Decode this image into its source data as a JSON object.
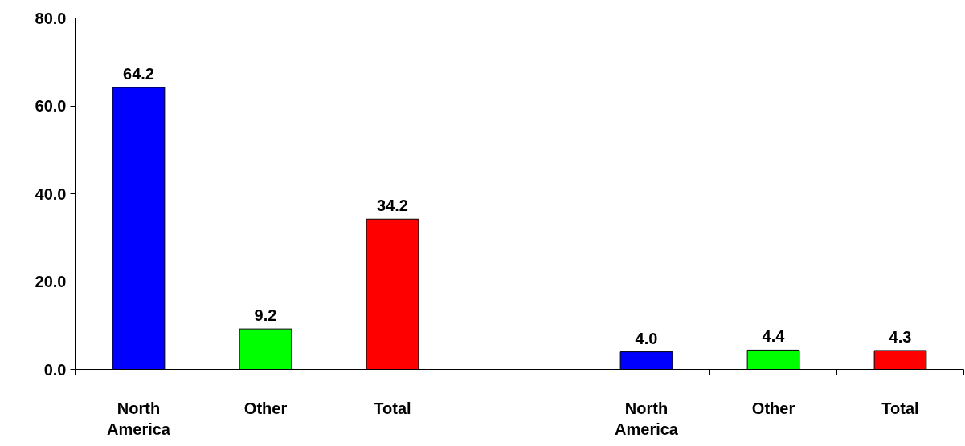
{
  "chart_data": {
    "type": "bar",
    "categories": [
      "North America",
      "Other",
      "Total",
      null,
      "North America",
      "Other",
      "Total"
    ],
    "values": [
      64.2,
      9.2,
      34.2,
      null,
      4.0,
      4.4,
      4.3
    ],
    "colors": [
      "#0000ff",
      "#00ff00",
      "#ff0000",
      null,
      "#0000ff",
      "#00ff00",
      "#ff0000"
    ],
    "ylim": [
      0,
      80
    ],
    "yticks": [
      {
        "value": 0,
        "label": "0.0"
      },
      {
        "value": 20,
        "label": "20.0"
      },
      {
        "value": 40,
        "label": "40.0"
      },
      {
        "value": 60,
        "label": "60.0"
      },
      {
        "value": 80,
        "label": "80.0"
      }
    ],
    "value_labels": [
      "64.2",
      "9.2",
      "34.2",
      null,
      "4.0",
      "4.4",
      "4.3"
    ],
    "grid": false
  }
}
